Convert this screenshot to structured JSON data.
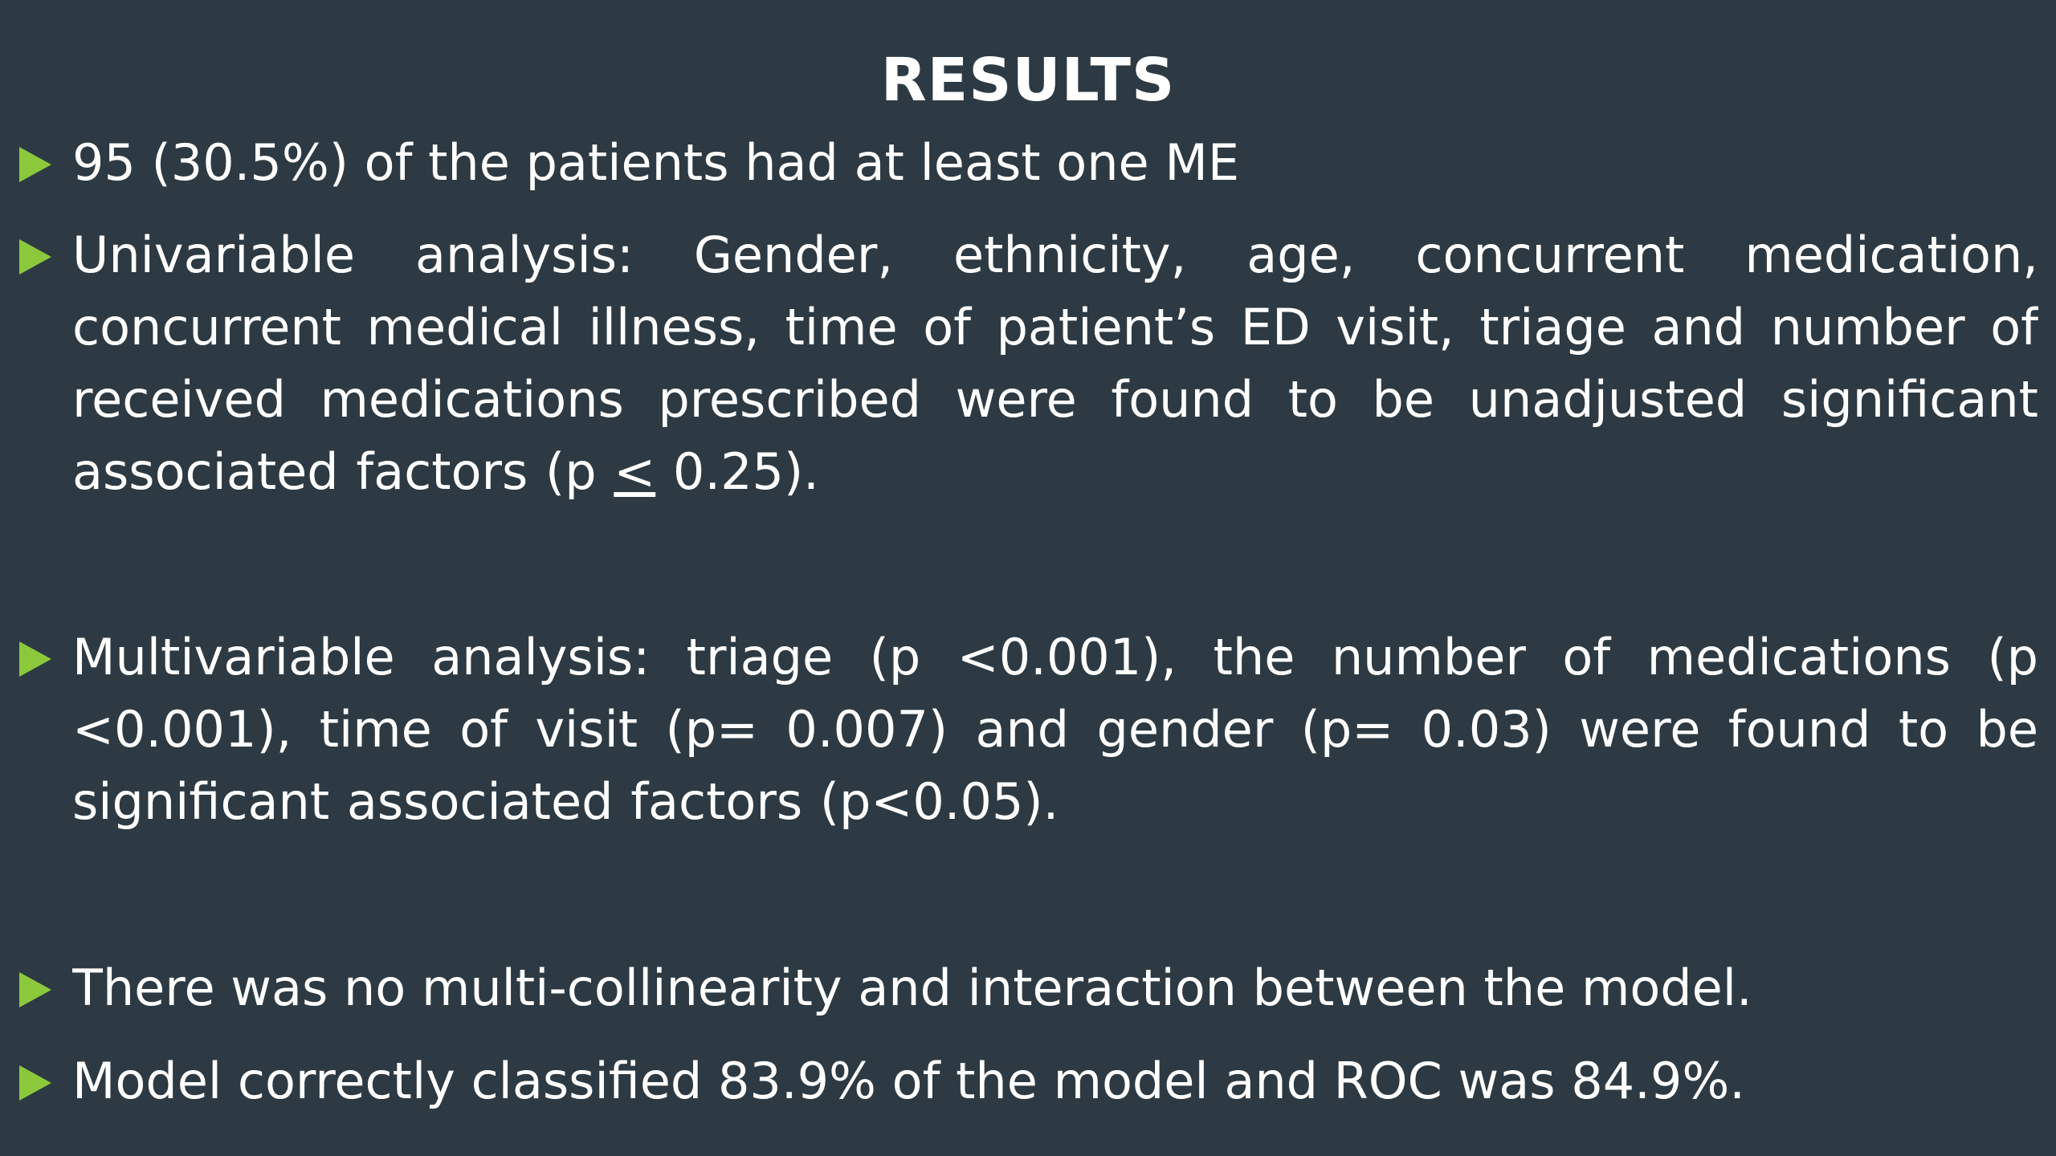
{
  "slide": {
    "title": "RESULTS",
    "bullets": [
      {
        "text": "95 (30.5%) of the patients had at least one ME"
      },
      {
        "text_before": "Univariable analysis: Gender, ethnicity, age, concurrent medication, concurrent medical illness, time of patient’s ED visit, triage and number of received medications prescribed were found to be unadjusted significant associated factors (p ",
        "le_symbol": "<",
        "text_after": " 0.25)."
      },
      {
        "text": "Multivariable analysis: triage (p <0.001), the number of medications (p <0.001), time of visit (p= 0.007) and gender (p= 0.03) were found to be significant associated factors (p<0.05)."
      },
      {
        "text": "There was no multi-collinearity  and interaction between the model."
      },
      {
        "text": "Model correctly classified 83.9% of the model and ROC was 84.9%."
      }
    ]
  },
  "colors": {
    "background": "#2d3a43",
    "bullet_arrow": "#8cc83c",
    "text": "#ffffff"
  }
}
